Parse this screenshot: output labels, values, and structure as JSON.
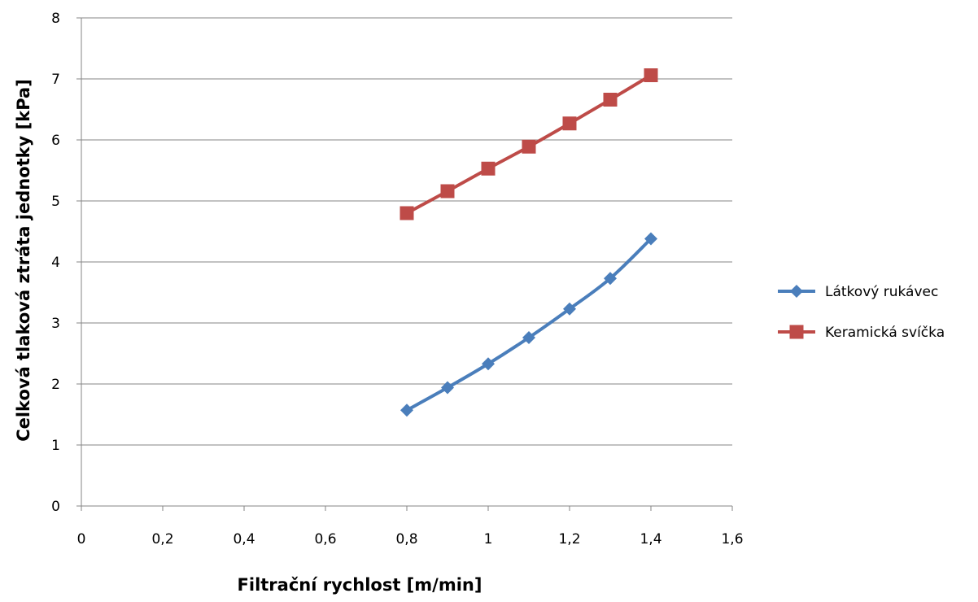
{
  "chart_data": {
    "type": "line",
    "title": "",
    "xlabel": "Filtrační rychlost [m/min]",
    "ylabel": "Celková tlaková ztráta jednotky [kPa]",
    "xlim": [
      0,
      1.6
    ],
    "ylim": [
      0,
      8
    ],
    "x_ticks": [
      0,
      0.2,
      0.4,
      0.6,
      0.8,
      1.0,
      1.2,
      1.4,
      1.6
    ],
    "x_tick_labels": [
      "0",
      "0,2",
      "0,4",
      "0,6",
      "0,8",
      "1",
      "1,2",
      "1,4",
      "1,6"
    ],
    "y_ticks": [
      0,
      1,
      2,
      3,
      4,
      5,
      6,
      7,
      8
    ],
    "y_tick_labels": [
      "0",
      "1",
      "2",
      "3",
      "4",
      "5",
      "6",
      "7",
      "8"
    ],
    "grid": "horizontal",
    "legend_position": "right",
    "series": [
      {
        "name": "Látkový rukávec",
        "color": "#4a7ebb",
        "marker": "diamond",
        "x": [
          0.8,
          0.9,
          1.0,
          1.1,
          1.2,
          1.3,
          1.4
        ],
        "y": [
          1.57,
          1.94,
          2.33,
          2.76,
          3.23,
          3.73,
          4.38
        ]
      },
      {
        "name": "Keramická svíčka",
        "color": "#be4b48",
        "marker": "square",
        "x": [
          0.8,
          0.9,
          1.0,
          1.1,
          1.2,
          1.3,
          1.4
        ],
        "y": [
          4.8,
          5.16,
          5.53,
          5.89,
          6.27,
          6.66,
          7.06
        ]
      }
    ]
  }
}
